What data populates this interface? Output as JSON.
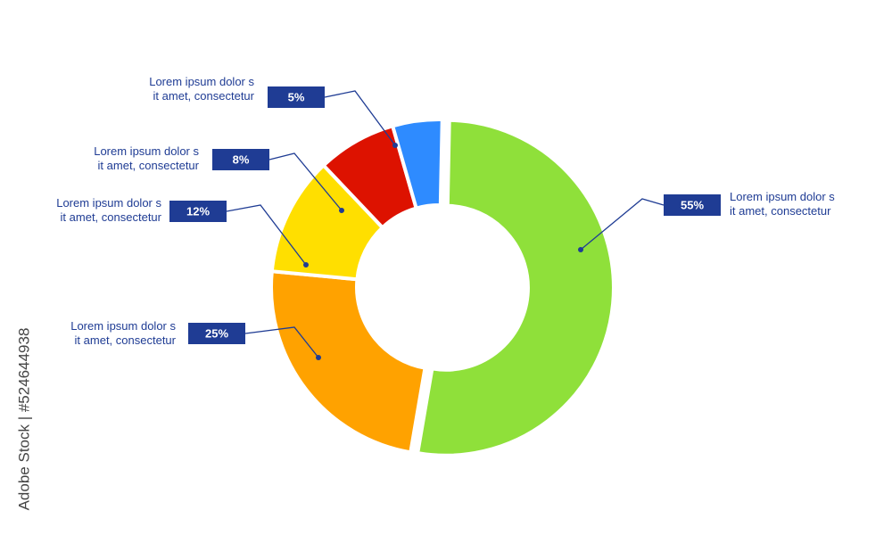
{
  "chart_data": {
    "type": "donut",
    "categories": [
      "Lorem ipsum dolor s\nit amet, consectetur",
      "Lorem ipsum dolor s\nit amet, consectetur",
      "Lorem ipsum dolor s\nit amet, consectetur",
      "Lorem ipsum dolor s\nit amet, consectetur",
      "Lorem ipsum dolor s\nit amet, consectetur"
    ],
    "values": [
      55,
      25,
      12,
      8,
      5
    ],
    "value_labels": [
      "55%",
      "25%",
      "12%",
      "8%",
      "5%"
    ],
    "colors": [
      "#8fe03a",
      "#ffa200",
      "#ffdf00",
      "#dd1200",
      "#2e8bff"
    ]
  },
  "watermark": "Adobe Stock | #524644938"
}
